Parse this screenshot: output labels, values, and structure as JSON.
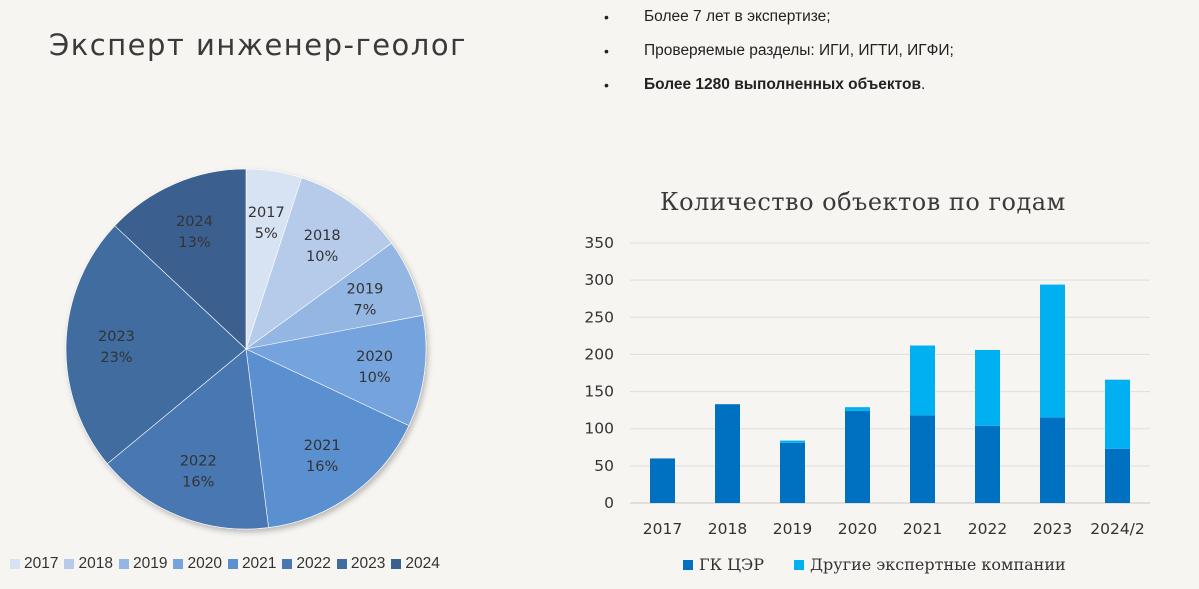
{
  "header": {
    "title": "Эксперт инженер-геолог",
    "bullets": [
      {
        "text": "Более 7 лет в экспертизе;",
        "bold": false
      },
      {
        "text": "Проверяемые разделы: ИГИ, ИГТИ, ИГФИ;",
        "bold": false
      },
      {
        "bold_text": "Более 1280 выполненных объектов",
        "tail": "."
      }
    ]
  },
  "chart_data": [
    {
      "type": "pie",
      "title": "",
      "slices": [
        {
          "label": "2017",
          "value": 5,
          "pct_label": "5%",
          "color": "#d7e2f2"
        },
        {
          "label": "2018",
          "value": 10,
          "pct_label": "10%",
          "color": "#b5cbe9"
        },
        {
          "label": "2019",
          "value": 7,
          "pct_label": "7%",
          "color": "#94b6e3"
        },
        {
          "label": "2020",
          "value": 10,
          "pct_label": "10%",
          "color": "#74a3dd"
        },
        {
          "label": "2021",
          "value": 16,
          "pct_label": "16%",
          "color": "#5a8fd0"
        },
        {
          "label": "2022",
          "value": 16,
          "pct_label": "16%",
          "color": "#4a77b1"
        },
        {
          "label": "2023",
          "value": 23,
          "pct_label": "23%",
          "color": "#416c9f"
        },
        {
          "label": "2024",
          "value": 13,
          "pct_label": "13%",
          "color": "#3a6090"
        }
      ],
      "legend": "bottom"
    },
    {
      "type": "bar",
      "stacked": true,
      "title": "Количество объектов по годам",
      "categories": [
        "2017",
        "2018",
        "2019",
        "2020",
        "2021",
        "2022",
        "2023",
        "2024/2"
      ],
      "series": [
        {
          "name": "ГК ЦЭР",
          "color": "#0070c0",
          "values": [
            60,
            133,
            81,
            124,
            118,
            104,
            115,
            73
          ]
        },
        {
          "name": "Другие экспертные компании",
          "color": "#00b0f0",
          "values": [
            0,
            0,
            3,
            5,
            94,
            102,
            179,
            93
          ]
        }
      ],
      "ylim": [
        0,
        350
      ],
      "yticks": [
        "0",
        "50",
        "100",
        "150",
        "200",
        "250",
        "300",
        "350"
      ],
      "grid": true,
      "legend": "bottom"
    }
  ]
}
